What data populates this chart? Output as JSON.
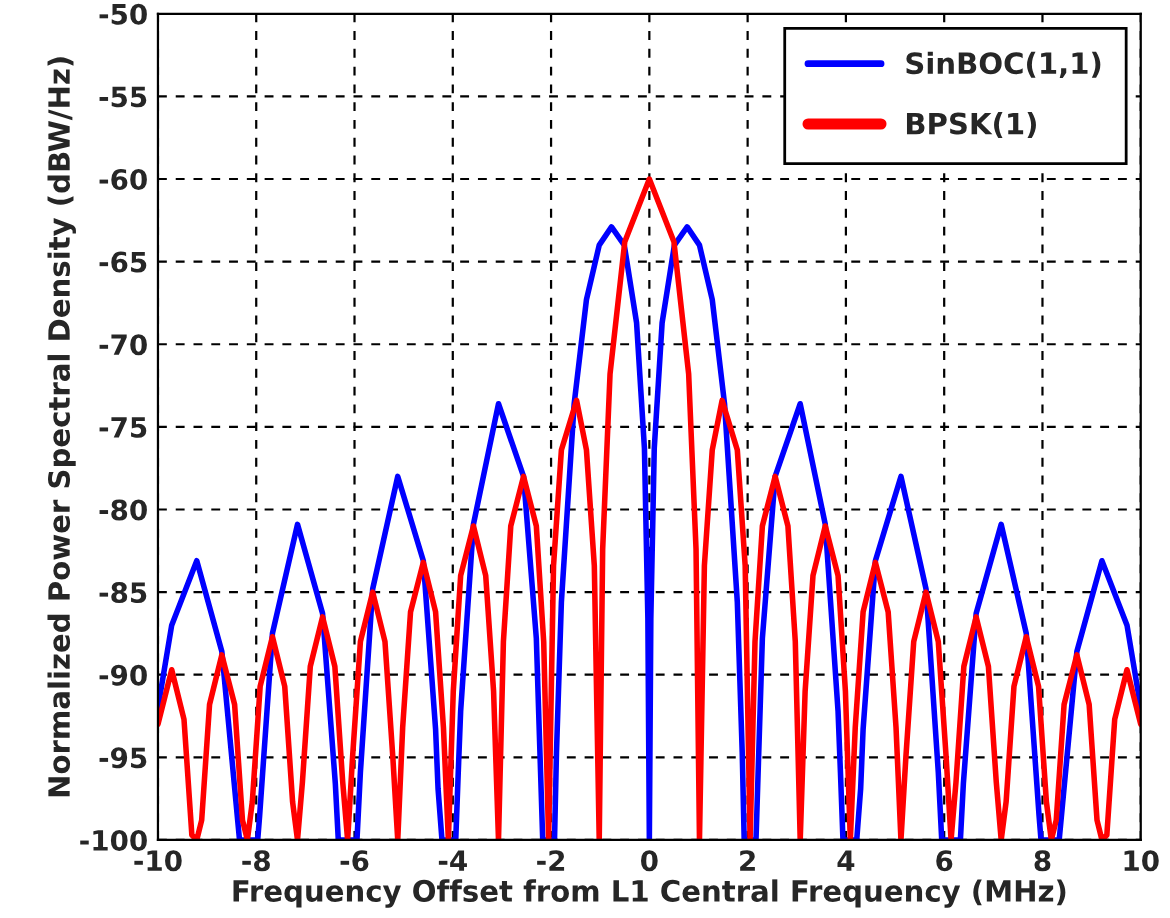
{
  "chart_data": {
    "type": "line",
    "xlabel": "Frequency Offset from L1 Central Frequency (MHz)",
    "ylabel": "Normalized Power Spectral Density (dBW/Hz)",
    "xlim": [
      -10,
      10
    ],
    "xticks": [
      -10,
      -8,
      -6,
      -4,
      -2,
      0,
      2,
      4,
      6,
      8,
      10
    ],
    "ylim": [
      -100,
      -50
    ],
    "yticks": [
      -100,
      -95,
      -90,
      -85,
      -80,
      -75,
      -70,
      -65,
      -60,
      -55,
      -50
    ],
    "grid": true,
    "legend": "top right",
    "line_style": "solid",
    "marker": "none",
    "series": [
      {
        "name": "SinBOC(1,1)",
        "color": "#0000ff",
        "x": [
          -10,
          -9.72,
          -9.21,
          -8.7,
          -8.34,
          -7.97,
          -7.93,
          -7.67,
          -7.16,
          -6.65,
          -6.39,
          -6.33,
          -5.95,
          -5.88,
          -5.63,
          -5.12,
          -4.6,
          -4.35,
          -4.3,
          -4.22,
          -3.94,
          -3.89,
          -3.84,
          -3.58,
          -3.07,
          -2.56,
          -2.3,
          -2.17,
          -1.93,
          -1.89,
          -1.79,
          -1.53,
          -1.28,
          -1.02,
          -0.77,
          -0.51,
          -0.26,
          -0.1,
          -0.03,
          0,
          0.03,
          0.1,
          0.26,
          0.51,
          0.77,
          1.02,
          1.28,
          1.53,
          1.79,
          1.89,
          1.93,
          2.17,
          2.3,
          2.56,
          3.07,
          3.58,
          3.84,
          3.89,
          3.94,
          4.22,
          4.3,
          4.35,
          4.6,
          5.12,
          5.63,
          5.88,
          5.95,
          6.33,
          6.39,
          6.65,
          7.16,
          7.67,
          7.93,
          7.97,
          8.34,
          8.7,
          9.21,
          9.72,
          10
        ],
        "values": [
          -92,
          -87,
          -83.1,
          -88.6,
          -100,
          -100,
          -98.5,
          -87.5,
          -80.9,
          -86.3,
          -96.6,
          -100,
          -100,
          -95.9,
          -84.8,
          -78,
          -83.1,
          -93.3,
          -96.9,
          -100,
          -100,
          -96,
          -92.2,
          -80.9,
          -73.6,
          -78,
          -87.8,
          -100,
          -100,
          -94.7,
          -85.6,
          -73.6,
          -67.3,
          -64,
          -62.9,
          -64,
          -68.7,
          -76.3,
          -86.6,
          -100,
          -86.6,
          -76.3,
          -68.7,
          -64,
          -62.9,
          -64,
          -67.3,
          -73.6,
          -85.6,
          -94.7,
          -100,
          -100,
          -87.8,
          -78,
          -73.6,
          -80.9,
          -92.2,
          -96,
          -100,
          -100,
          -96.9,
          -93.3,
          -83.1,
          -78,
          -84.8,
          -95.9,
          -100,
          -100,
          -96.6,
          -86.3,
          -80.9,
          -87.5,
          -98.5,
          -100,
          -100,
          -88.6,
          -83.1,
          -87,
          -92
        ]
      },
      {
        "name": "BPSK(1)",
        "color": "#ff0000",
        "x": [
          -10,
          -9.72,
          -9.47,
          -9.31,
          -9.21,
          -9.11,
          -8.95,
          -8.7,
          -8.44,
          -8.28,
          -8.18,
          -8.08,
          -7.92,
          -7.67,
          -7.42,
          -7.26,
          -7.16,
          -7.06,
          -6.9,
          -6.65,
          -6.4,
          -6.24,
          -6.14,
          -6.04,
          -5.88,
          -5.63,
          -5.38,
          -5.22,
          -5.12,
          -5.02,
          -4.86,
          -4.6,
          -4.35,
          -4.19,
          -4.09,
          -3.99,
          -3.84,
          -3.58,
          -3.33,
          -3.17,
          -3.07,
          -2.97,
          -2.82,
          -2.56,
          -2.3,
          -2.15,
          -2.05,
          -1.95,
          -1.79,
          -1.48,
          -1.28,
          -1.12,
          -1.02,
          -0.95,
          -0.8,
          -0.5,
          0,
          0.5,
          0.8,
          0.95,
          1.02,
          1.12,
          1.28,
          1.48,
          1.79,
          1.95,
          2.05,
          2.15,
          2.3,
          2.56,
          2.82,
          2.97,
          3.07,
          3.17,
          3.33,
          3.58,
          3.84,
          3.99,
          4.09,
          4.19,
          4.35,
          4.6,
          4.86,
          5.02,
          5.12,
          5.22,
          5.38,
          5.63,
          5.88,
          6.04,
          6.14,
          6.24,
          6.4,
          6.65,
          6.9,
          7.06,
          7.16,
          7.26,
          7.42,
          7.67,
          7.92,
          8.08,
          8.18,
          8.28,
          8.44,
          8.7,
          8.95,
          9.11,
          9.21,
          9.31,
          9.47,
          9.72,
          10
        ],
        "values": [
          -93,
          -89.7,
          -92.7,
          -99.7,
          -100,
          -98.8,
          -91.8,
          -88.8,
          -91.8,
          -98.8,
          -100,
          -97.7,
          -90.7,
          -87.7,
          -90.7,
          -97.7,
          -100,
          -96.5,
          -89.5,
          -86.5,
          -89.5,
          -96.5,
          -100,
          -95,
          -88,
          -85,
          -88,
          -95,
          -100,
          -93.2,
          -86.2,
          -83.2,
          -86.2,
          -93.2,
          -100,
          -91,
          -84,
          -81,
          -84,
          -91,
          -100,
          -88,
          -81,
          -78,
          -81,
          -88,
          -100,
          -83.4,
          -76.4,
          -73.4,
          -76.4,
          -83.4,
          -100,
          -82.4,
          -71.8,
          -63.8,
          -60,
          -63.8,
          -71.8,
          -82.4,
          -100,
          -83.4,
          -76.4,
          -73.4,
          -76.4,
          -83.4,
          -100,
          -88,
          -81,
          -78,
          -81,
          -88,
          -100,
          -91,
          -84,
          -81,
          -84,
          -91,
          -100,
          -93.2,
          -86.2,
          -83.2,
          -86.2,
          -93.2,
          -100,
          -95,
          -88,
          -85,
          -88,
          -95,
          -100,
          -96.5,
          -89.5,
          -86.5,
          -89.5,
          -96.5,
          -100,
          -97.7,
          -90.7,
          -87.7,
          -90.7,
          -97.7,
          -100,
          -98.8,
          -91.8,
          -88.8,
          -91.8,
          -98.8,
          -100,
          -99.7,
          -92.7,
          -89.7,
          -93
        ]
      }
    ]
  }
}
